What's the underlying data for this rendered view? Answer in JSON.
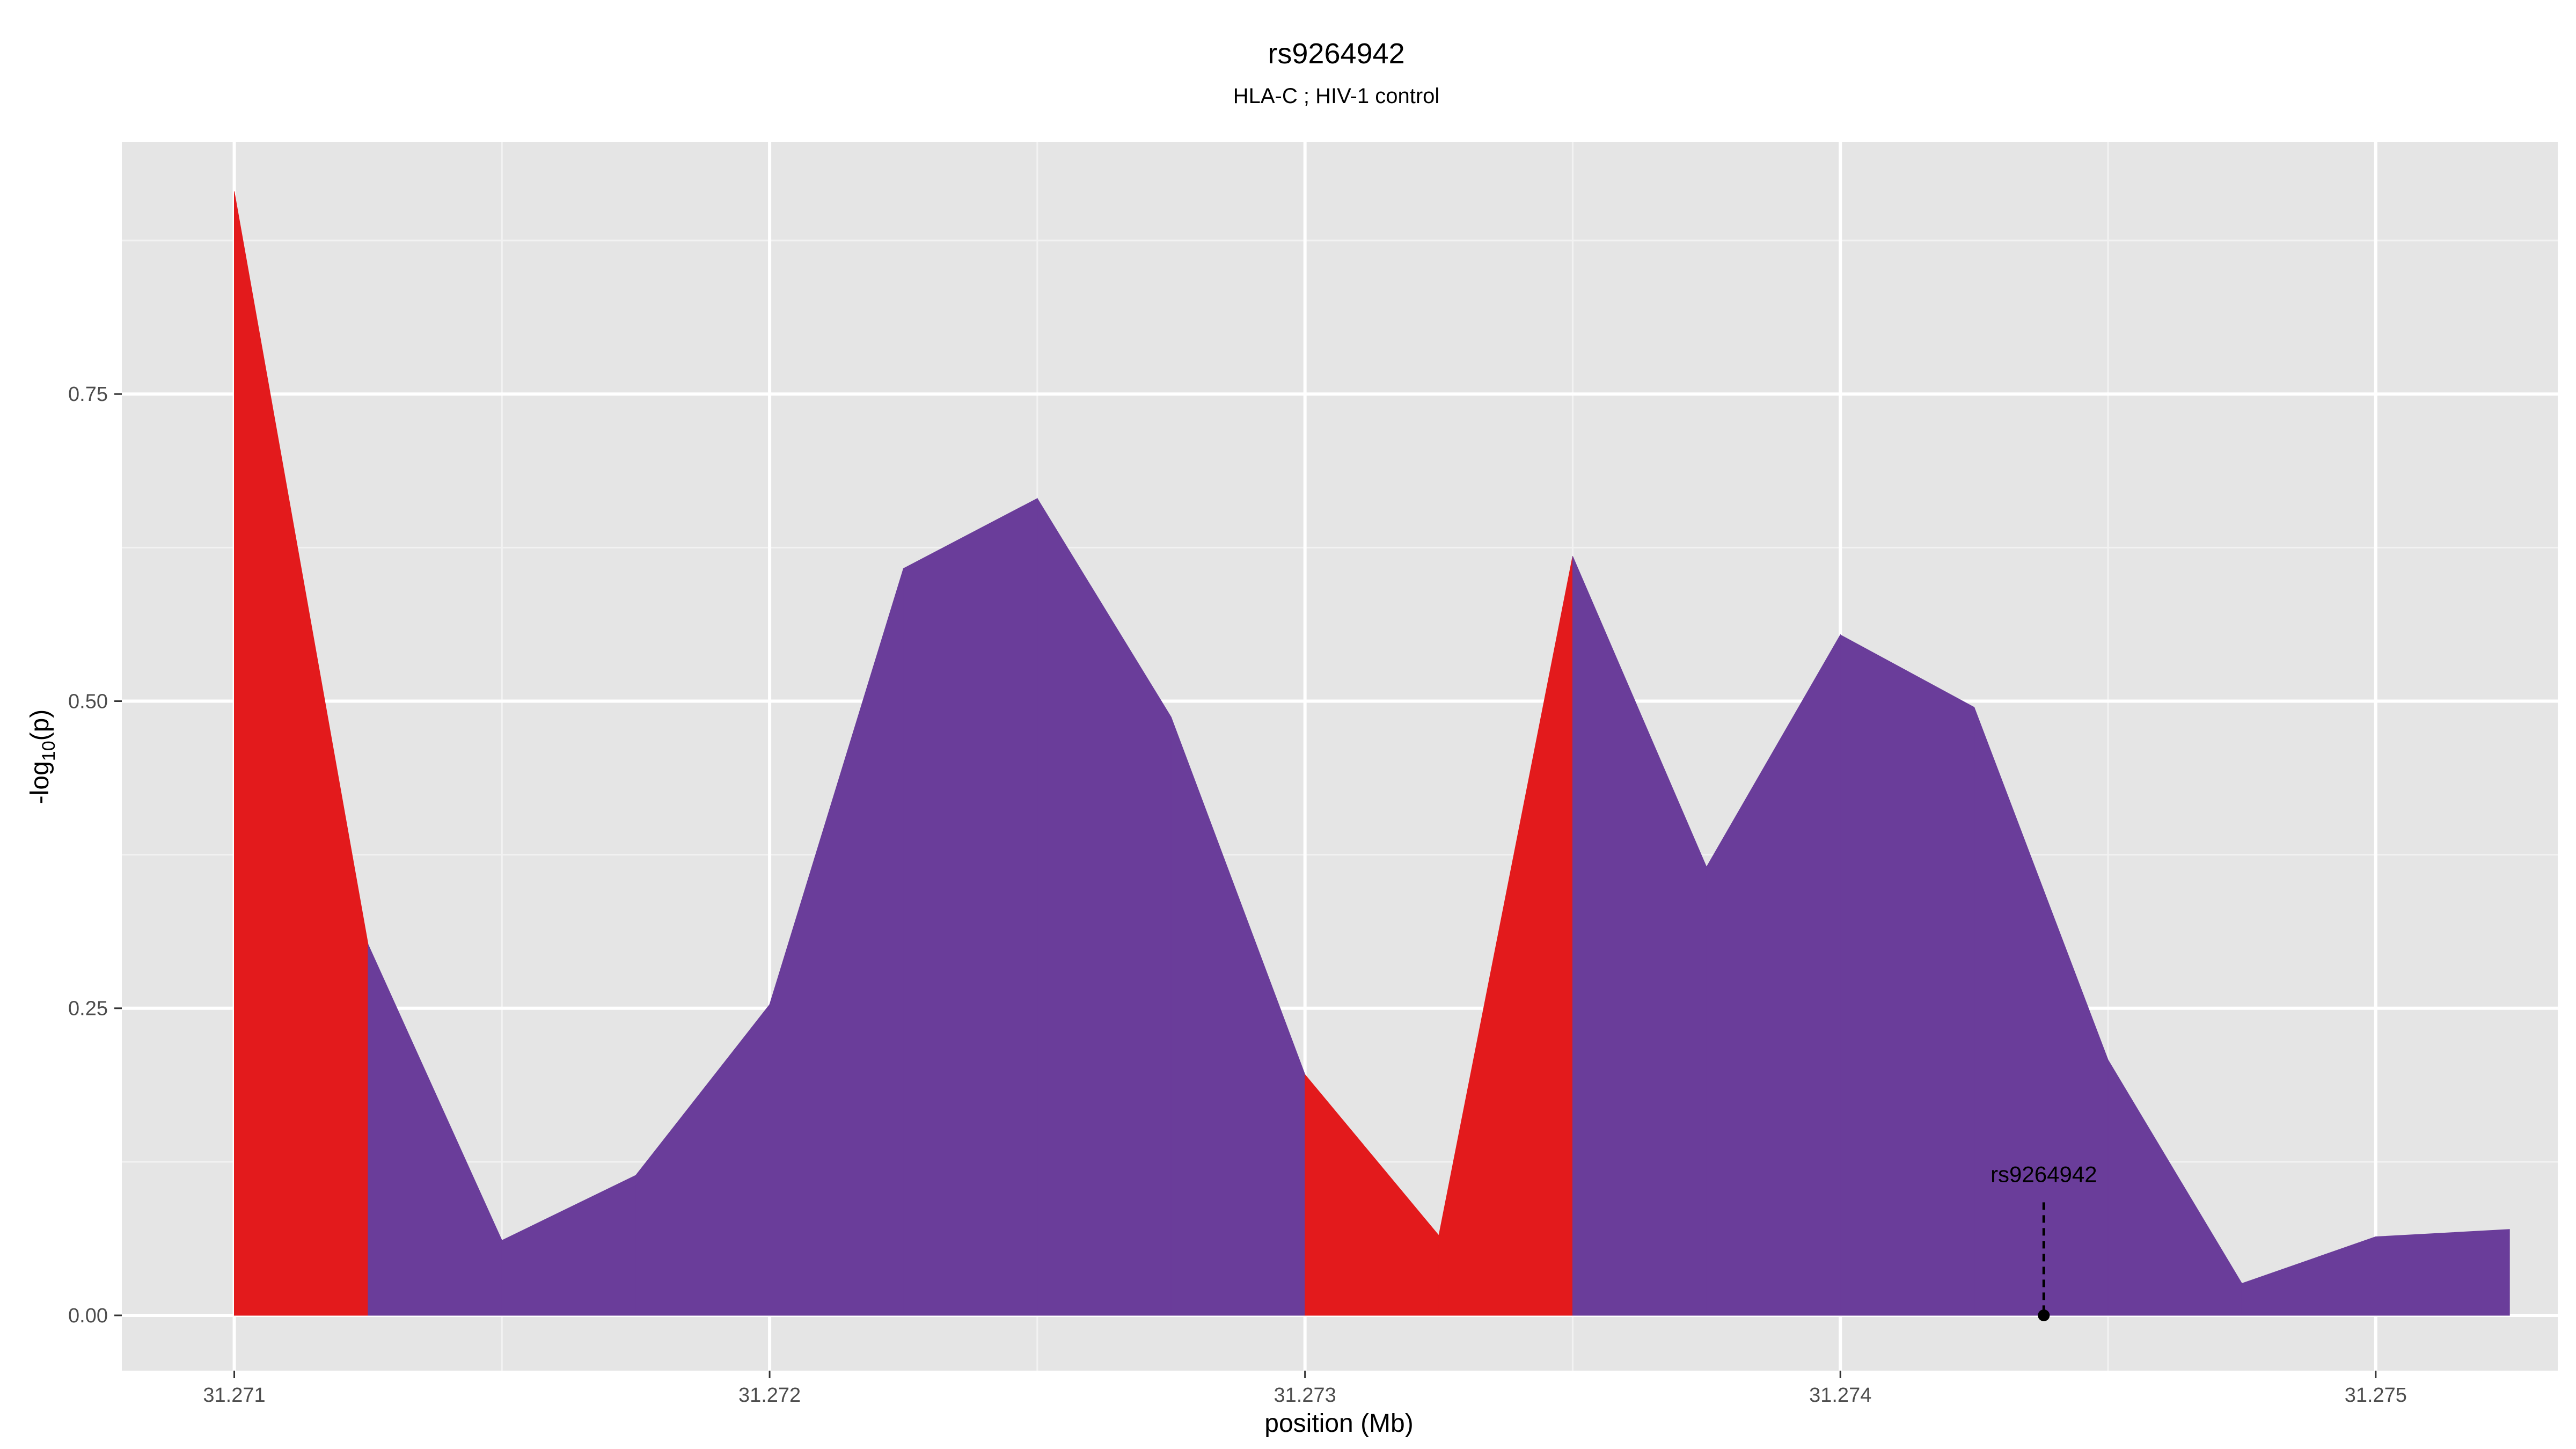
{
  "chart_data": {
    "type": "area",
    "title": "rs9264942",
    "subtitle": "HLA-C ; HIV-1 control",
    "xlabel": "position (Mb)",
    "ylabel_parts": {
      "pre": "-log",
      "sub": "10",
      "post": "(p)"
    },
    "xlim": [
      31.27079,
      31.27534
    ],
    "ylim": [
      -0.045,
      0.955
    ],
    "x_ticks": [
      31.271,
      31.272,
      31.273,
      31.274,
      31.275
    ],
    "x_tick_labels": [
      "31.271",
      "31.272",
      "31.273",
      "31.274",
      "31.275"
    ],
    "y_ticks": [
      0.0,
      0.25,
      0.5,
      0.75
    ],
    "y_tick_labels": [
      "0.00",
      "0.25",
      "0.50",
      "0.75"
    ],
    "x_minor_ticks": [
      31.2715,
      31.2725,
      31.2735,
      31.2745
    ],
    "y_minor_ticks": [
      0.125,
      0.375,
      0.625,
      0.875
    ],
    "grid": true,
    "x": [
      31.271,
      31.27125,
      31.2715,
      31.27175,
      31.272,
      31.27225,
      31.2725,
      31.27275,
      31.273,
      31.27325,
      31.2735,
      31.27375,
      31.274,
      31.27425,
      31.2745,
      31.27475,
      31.275,
      31.27525
    ],
    "y": [
      0.915,
      0.302,
      0.061,
      0.114,
      0.253,
      0.608,
      0.665,
      0.487,
      0.196,
      0.065,
      0.618,
      0.365,
      0.554,
      0.495,
      0.208,
      0.026,
      0.064,
      0.07
    ],
    "highlight_ranges": [
      [
        31.271,
        31.27125
      ],
      [
        31.273,
        31.2735
      ]
    ],
    "colors": {
      "base": "#6a3d9a",
      "highlight": "#e31a1c",
      "panel": "#e5e5e5",
      "grid_major": "#ffffff",
      "grid_minor": "#f2f2f2"
    },
    "annotation": {
      "label": "rs9264942",
      "x": 31.27438,
      "y": 0.0,
      "line_top": 0.092
    }
  }
}
